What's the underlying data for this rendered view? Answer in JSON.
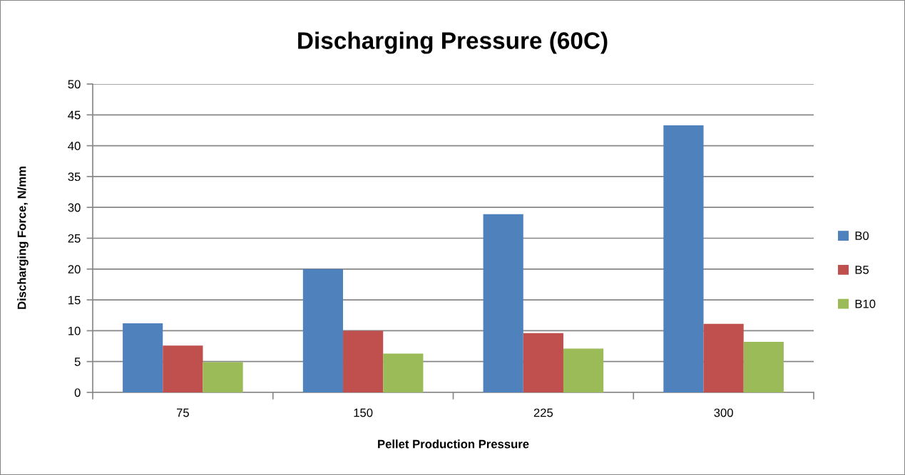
{
  "chart_data": {
    "type": "bar",
    "title": "Discharging Pressure (60C)",
    "xlabel": "Pellet Production Pressure",
    "ylabel": "Discharging Force, N/mm",
    "categories": [
      "75",
      "150",
      "225",
      "300"
    ],
    "series": [
      {
        "name": "B0",
        "color": "#4f81bd",
        "values": [
          11.2,
          20.0,
          28.9,
          43.3
        ]
      },
      {
        "name": "B5",
        "color": "#c0504d",
        "values": [
          7.6,
          10.0,
          9.6,
          11.1
        ]
      },
      {
        "name": "B10",
        "color": "#9bbb59",
        "values": [
          4.9,
          6.3,
          7.1,
          8.2
        ]
      }
    ],
    "ylim": [
      0,
      50
    ],
    "yticks": [
      0,
      5,
      10,
      15,
      20,
      25,
      30,
      35,
      40,
      45,
      50
    ],
    "grid": "y",
    "legend": "right"
  }
}
